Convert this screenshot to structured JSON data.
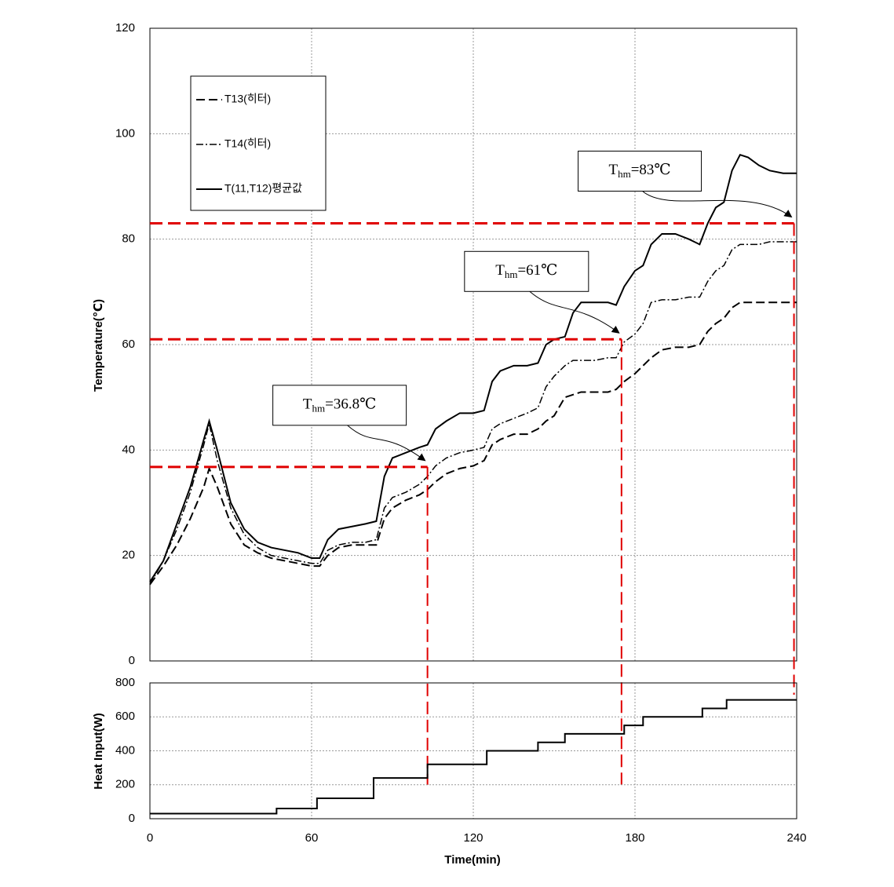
{
  "chart_data": [
    {
      "type": "line",
      "y_label": "Temperature(℃)",
      "ylim": [
        0,
        120
      ],
      "yticks": [
        0,
        20,
        40,
        60,
        80,
        100,
        120
      ],
      "grid": true,
      "x": [
        0,
        5,
        10,
        15,
        20,
        22,
        25,
        30,
        35,
        40,
        45,
        50,
        55,
        60,
        63,
        66,
        70,
        75,
        80,
        84,
        87,
        90,
        95,
        100,
        103,
        106,
        110,
        115,
        120,
        124,
        127,
        130,
        135,
        140,
        144,
        147,
        150,
        154,
        157,
        160,
        165,
        170,
        173,
        176,
        180,
        183,
        186,
        190,
        195,
        200,
        204,
        207,
        210,
        213,
        216,
        219,
        222,
        226,
        230,
        235,
        240
      ],
      "series": [
        {
          "name": "T13(히터)",
          "color": "#000000",
          "dash": "dashed",
          "values": [
            14.5,
            18,
            22,
            27,
            33,
            36.5,
            33,
            26,
            22,
            20.5,
            19.5,
            19,
            18.5,
            18,
            18,
            20,
            21.5,
            22,
            22,
            22,
            27,
            29,
            30.5,
            31.5,
            32.5,
            34,
            35.5,
            36.5,
            37,
            38,
            41,
            42,
            43,
            43,
            44,
            45.5,
            46.5,
            50,
            50.5,
            51,
            51,
            51,
            51.5,
            53,
            54.5,
            56,
            57.5,
            59,
            59.5,
            59.5,
            60,
            62.5,
            64,
            65,
            67,
            68,
            68,
            68,
            68,
            68,
            68
          ]
        },
        {
          "name": "T14(히터)",
          "color": "#000000",
          "dash": "dashdot",
          "values": [
            14.5,
            19,
            25,
            32,
            41,
            45,
            38,
            29,
            24,
            21.5,
            20,
            19.5,
            19,
            18.5,
            18.5,
            21,
            22,
            22.5,
            22.5,
            23,
            29,
            31,
            32,
            33.5,
            35,
            37,
            38.5,
            39.5,
            40,
            40.5,
            44,
            45,
            46,
            47,
            48,
            52,
            54,
            56,
            57,
            57,
            57,
            57.5,
            57.5,
            60.5,
            62,
            64,
            68,
            68.5,
            68.5,
            69,
            69,
            72,
            74,
            75,
            78,
            79,
            79,
            79,
            79.5,
            79.5,
            79.5
          ]
        },
        {
          "name": "T(11,T12)평균값",
          "color": "#000000",
          "dash": "solid",
          "values": [
            15,
            19,
            26,
            33,
            42,
            45.5,
            40,
            30,
            25,
            22.5,
            21.5,
            21,
            20.5,
            19.5,
            19.5,
            23,
            25,
            25.5,
            26,
            26.5,
            35,
            38.5,
            39.5,
            40.5,
            41,
            44,
            45.5,
            47,
            47,
            47.5,
            53,
            55,
            56,
            56,
            56.5,
            60,
            61,
            61.5,
            66,
            68,
            68,
            68,
            67.5,
            71,
            74,
            75,
            79,
            81,
            81,
            80,
            79,
            83,
            86,
            87,
            93,
            96,
            95.5,
            94,
            93,
            92.5,
            92.5
          ]
        }
      ],
      "reference_lines": [
        {
          "label": [
            "T",
            "hm",
            "=36.8℃"
          ],
          "value": 36.8,
          "time": 103,
          "color": "#e00000"
        },
        {
          "label": [
            "T",
            "hm",
            "=61℃"
          ],
          "value": 61,
          "time": 175,
          "color": "#e00000"
        },
        {
          "label": [
            "T",
            "hm",
            "=83℃"
          ],
          "value": 83,
          "time": 239,
          "color": "#e00000"
        }
      ]
    },
    {
      "type": "line",
      "x_label": "Time(min)",
      "y_label": "Heat Input(W)",
      "xlim": [
        0,
        240
      ],
      "xticks": [
        0,
        60,
        120,
        180,
        240
      ],
      "ylim": [
        0,
        800
      ],
      "yticks": [
        0,
        200,
        400,
        600,
        800
      ],
      "grid": true,
      "x": [
        0,
        47,
        47,
        62,
        62,
        83,
        83,
        103,
        103,
        125,
        125,
        144,
        144,
        154,
        154,
        176,
        176,
        183,
        183,
        205,
        205,
        214,
        214,
        240
      ],
      "series": [
        {
          "color": "#000000",
          "dash": "solid",
          "values": [
            30,
            30,
            60,
            60,
            120,
            120,
            240,
            240,
            320,
            320,
            400,
            400,
            450,
            450,
            500,
            500,
            550,
            550,
            600,
            600,
            650,
            650,
            700,
            700
          ]
        }
      ]
    }
  ]
}
